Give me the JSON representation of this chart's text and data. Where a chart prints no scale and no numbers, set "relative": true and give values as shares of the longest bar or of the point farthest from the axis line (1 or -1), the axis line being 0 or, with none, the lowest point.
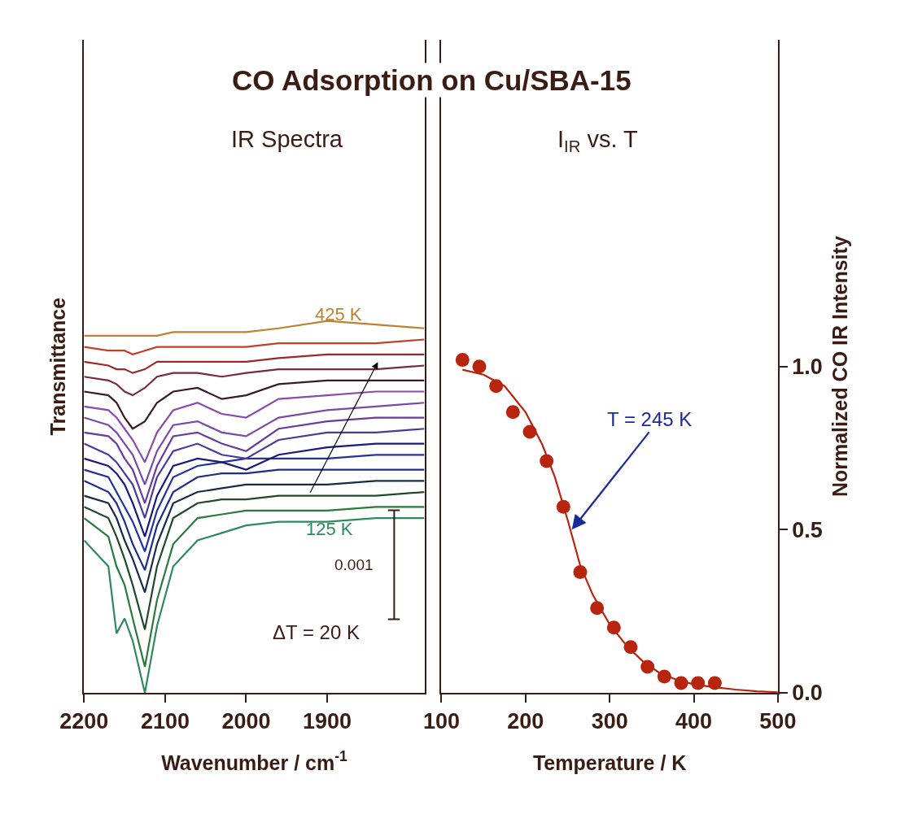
{
  "chart_data": [
    {
      "type": "line",
      "title": "CO Adsorption on Cu/SBA-15",
      "subtitle": "IR Spectra",
      "xlabel": "Wavenumber / cm$^{-1}$",
      "ylabel": "Transmittance",
      "x": [
        2200,
        2170,
        2160,
        2150,
        2140,
        2125,
        2110,
        2090,
        2060,
        2030,
        2000,
        1960,
        1900,
        1840,
        1780
      ],
      "xlim": [
        2200,
        1780
      ],
      "xticks": [
        2200,
        2100,
        2000,
        1900
      ],
      "relative": true,
      "tick_labels": "x",
      "series": [
        {
          "color": "#2e8a5e",
          "values": [
            0.41,
            0.34,
            0.16,
            0.2,
            0.14,
            0.0,
            0.18,
            0.34,
            0.41,
            0.43,
            0.45,
            0.46,
            0.46,
            0.47,
            0.47
          ]
        },
        {
          "color": "#2a7a3a",
          "values": [
            0.47,
            0.42,
            0.34,
            0.29,
            0.2,
            0.07,
            0.25,
            0.4,
            0.47,
            0.48,
            0.49,
            0.49,
            0.49,
            0.5,
            0.5
          ]
        },
        {
          "color": "#1f4a2a",
          "values": [
            0.5,
            0.47,
            0.42,
            0.36,
            0.29,
            0.17,
            0.34,
            0.47,
            0.51,
            0.52,
            0.52,
            0.53,
            0.53,
            0.53,
            0.54
          ]
        },
        {
          "color": "#1a2a4a",
          "values": [
            0.53,
            0.51,
            0.47,
            0.41,
            0.36,
            0.27,
            0.4,
            0.51,
            0.54,
            0.55,
            0.56,
            0.56,
            0.56,
            0.57,
            0.57
          ]
        },
        {
          "color": "#1c2e8a",
          "values": [
            0.57,
            0.54,
            0.51,
            0.46,
            0.4,
            0.33,
            0.45,
            0.54,
            0.58,
            0.59,
            0.59,
            0.6,
            0.6,
            0.6,
            0.6
          ]
        },
        {
          "color": "#2233a0",
          "values": [
            0.6,
            0.58,
            0.54,
            0.5,
            0.46,
            0.38,
            0.49,
            0.58,
            0.61,
            0.62,
            0.63,
            0.63,
            0.63,
            0.64,
            0.64
          ]
        },
        {
          "color": "#1a1a80",
          "values": [
            0.63,
            0.61,
            0.59,
            0.56,
            0.51,
            0.42,
            0.53,
            0.61,
            0.63,
            0.62,
            0.6,
            0.64,
            0.66,
            0.67,
            0.67
          ]
        },
        {
          "color": "#4a3aa0",
          "values": [
            0.67,
            0.64,
            0.62,
            0.59,
            0.56,
            0.47,
            0.58,
            0.65,
            0.67,
            0.64,
            0.63,
            0.68,
            0.7,
            0.7,
            0.71
          ]
        },
        {
          "color": "#6a3aa0",
          "values": [
            0.7,
            0.69,
            0.67,
            0.63,
            0.6,
            0.51,
            0.61,
            0.69,
            0.7,
            0.67,
            0.65,
            0.71,
            0.73,
            0.74,
            0.74
          ]
        },
        {
          "color": "#7a4aa8",
          "values": [
            0.74,
            0.72,
            0.7,
            0.67,
            0.64,
            0.56,
            0.65,
            0.72,
            0.73,
            0.7,
            0.69,
            0.74,
            0.76,
            0.77,
            0.78
          ]
        },
        {
          "color": "#8a4ab0",
          "values": [
            0.77,
            0.76,
            0.74,
            0.71,
            0.68,
            0.62,
            0.7,
            0.76,
            0.78,
            0.75,
            0.74,
            0.79,
            0.8,
            0.81,
            0.81
          ]
        },
        {
          "color": "#3a1a2a",
          "values": [
            0.81,
            0.8,
            0.78,
            0.74,
            0.71,
            0.73,
            0.78,
            0.81,
            0.82,
            0.79,
            0.8,
            0.83,
            0.84,
            0.84,
            0.84
          ]
        },
        {
          "color": "#7a2a3a",
          "values": [
            0.85,
            0.84,
            0.83,
            0.81,
            0.8,
            0.82,
            0.85,
            0.86,
            0.86,
            0.85,
            0.86,
            0.87,
            0.87,
            0.87,
            0.88
          ]
        },
        {
          "color": "#9a2a2a",
          "values": [
            0.89,
            0.88,
            0.87,
            0.87,
            0.86,
            0.87,
            0.89,
            0.89,
            0.89,
            0.89,
            0.89,
            0.9,
            0.91,
            0.91,
            0.91
          ]
        },
        {
          "color": "#c0402a",
          "values": [
            0.93,
            0.92,
            0.92,
            0.92,
            0.91,
            0.92,
            0.93,
            0.93,
            0.93,
            0.93,
            0.93,
            0.94,
            0.94,
            0.94,
            0.95
          ]
        },
        {
          "color": "#c08030",
          "values": [
            0.96,
            0.96,
            0.96,
            0.96,
            0.96,
            0.96,
            0.96,
            0.97,
            0.97,
            0.97,
            0.97,
            0.98,
            1.0,
            0.99,
            0.98
          ]
        }
      ],
      "annotations": [
        "425 K",
        "125 K",
        "0.001",
        "ΔT = 20 K"
      ]
    },
    {
      "type": "scatter",
      "subtitle": "I$_{IR}$ vs. T",
      "xlabel": "Temperature / K",
      "ylabel": "Normalized CO IR Intensity",
      "xlim": [
        100,
        500
      ],
      "xticks": [
        100,
        200,
        300,
        400,
        500
      ],
      "ylim": [
        0,
        2.0
      ],
      "yticks": [
        {
          "value": 0,
          "label": "0.0"
        },
        {
          "value": 0.5,
          "label": "0.5"
        },
        {
          "value": 1,
          "label": "1.0"
        }
      ],
      "series": [
        {
          "color": "#b8250e",
          "marker": "circle",
          "x": [
            125,
            145,
            165,
            185,
            205,
            225,
            245,
            265,
            285,
            305,
            325,
            345,
            365,
            385,
            405,
            425
          ],
          "values": [
            1.02,
            1.0,
            0.94,
            0.86,
            0.8,
            0.71,
            0.57,
            0.37,
            0.26,
            0.2,
            0.14,
            0.08,
            0.05,
            0.03,
            0.03,
            0.03
          ]
        },
        {
          "type": "line",
          "color": "#b8250e",
          "x": [
            125,
            150,
            175,
            200,
            220,
            235,
            250,
            265,
            280,
            300,
            320,
            340,
            360,
            380,
            400,
            425,
            450,
            475,
            500
          ],
          "values": [
            0.99,
            0.975,
            0.94,
            0.86,
            0.76,
            0.66,
            0.53,
            0.39,
            0.3,
            0.21,
            0.145,
            0.095,
            0.06,
            0.04,
            0.026,
            0.017,
            0.01,
            0.005,
            0.002
          ]
        }
      ],
      "annotations": [
        {
          "text": "T = 245 K",
          "x": 255,
          "y": 0.5
        }
      ]
    }
  ]
}
